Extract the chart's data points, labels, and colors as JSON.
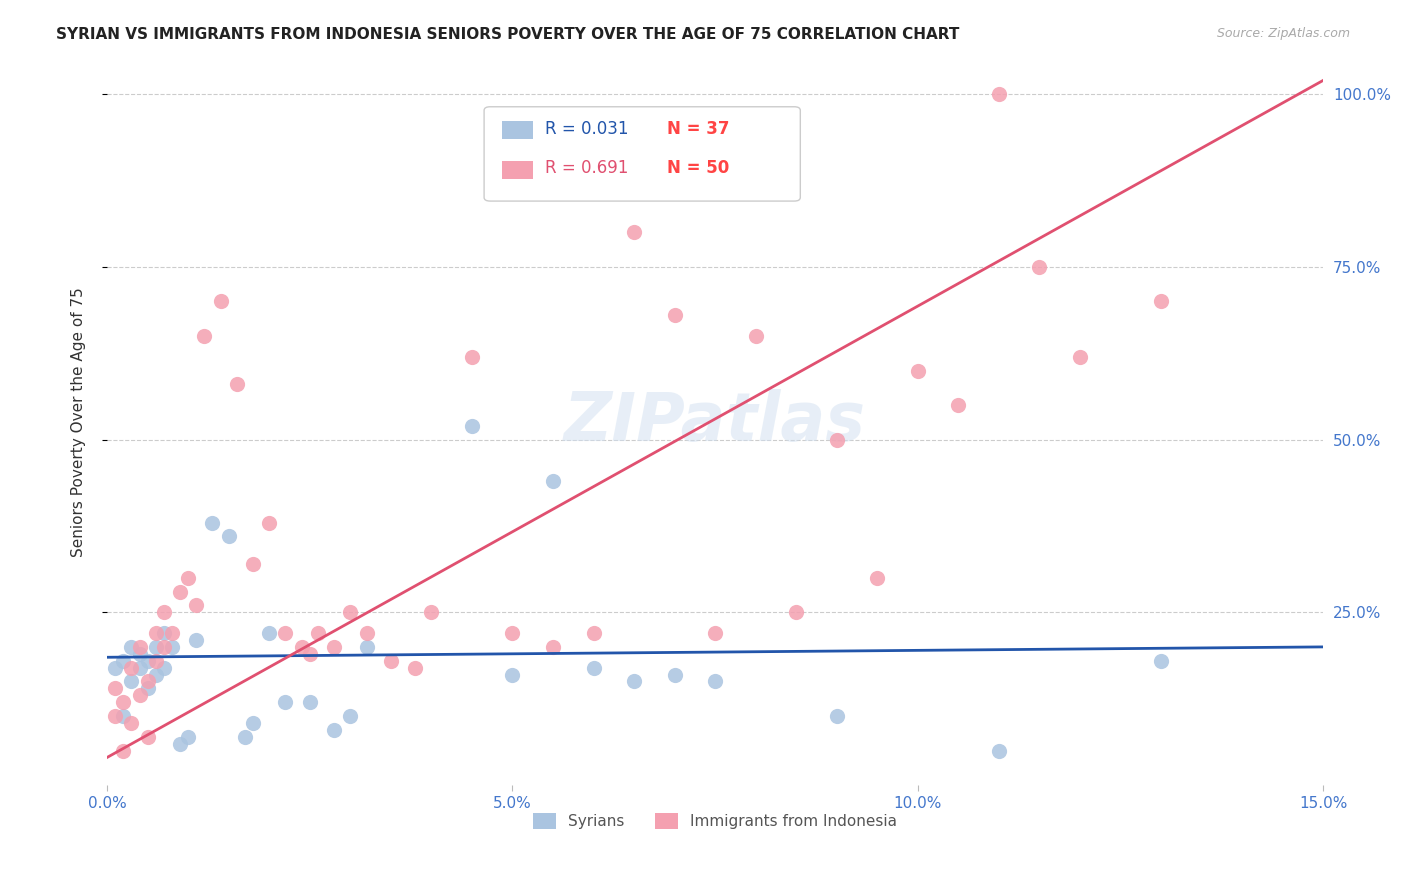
{
  "title": "SYRIAN VS IMMIGRANTS FROM INDONESIA SENIORS POVERTY OVER THE AGE OF 75 CORRELATION CHART",
  "source": "Source: ZipAtlas.com",
  "ylabel": "Seniors Poverty Over the Age of 75",
  "xlabel": "",
  "xlim": [
    0.0,
    0.15
  ],
  "ylim": [
    0.0,
    1.05
  ],
  "xticks": [
    0.0,
    0.05,
    0.1,
    0.15
  ],
  "xticklabels": [
    "0.0%",
    "5.0%",
    "10.0%",
    "15.0%"
  ],
  "ytick_positions": [
    0.25,
    0.5,
    0.75,
    1.0
  ],
  "yticklabels_right": [
    "25.0%",
    "50.0%",
    "75.0%",
    "100.0%"
  ],
  "background_color": "#ffffff",
  "grid_color": "#cccccc",
  "watermark": "ZIPatlas",
  "syrians_color": "#aac4e0",
  "indonesia_color": "#f4a0b0",
  "syrians_line_color": "#2255aa",
  "indonesia_line_color": "#e05070",
  "legend_R_syrians": "R = 0.031",
  "legend_N_syrians": "N = 37",
  "legend_R_indonesia": "R = 0.691",
  "legend_N_indonesia": "N = 50",
  "syrians_x": [
    0.001,
    0.002,
    0.002,
    0.003,
    0.003,
    0.004,
    0.004,
    0.005,
    0.005,
    0.006,
    0.006,
    0.007,
    0.007,
    0.008,
    0.009,
    0.01,
    0.011,
    0.013,
    0.015,
    0.017,
    0.018,
    0.02,
    0.022,
    0.025,
    0.028,
    0.03,
    0.032,
    0.045,
    0.05,
    0.055,
    0.06,
    0.065,
    0.07,
    0.075,
    0.09,
    0.11,
    0.13
  ],
  "syrians_y": [
    0.17,
    0.1,
    0.18,
    0.15,
    0.2,
    0.17,
    0.19,
    0.14,
    0.18,
    0.2,
    0.16,
    0.17,
    0.22,
    0.2,
    0.06,
    0.07,
    0.21,
    0.38,
    0.36,
    0.07,
    0.09,
    0.22,
    0.12,
    0.12,
    0.08,
    0.1,
    0.2,
    0.52,
    0.16,
    0.44,
    0.17,
    0.15,
    0.16,
    0.15,
    0.1,
    0.05,
    0.18
  ],
  "indonesia_x": [
    0.001,
    0.001,
    0.002,
    0.002,
    0.003,
    0.003,
    0.004,
    0.004,
    0.005,
    0.005,
    0.006,
    0.006,
    0.007,
    0.007,
    0.008,
    0.009,
    0.01,
    0.011,
    0.012,
    0.014,
    0.016,
    0.018,
    0.02,
    0.022,
    0.024,
    0.025,
    0.026,
    0.028,
    0.03,
    0.032,
    0.035,
    0.038,
    0.04,
    0.045,
    0.05,
    0.055,
    0.06,
    0.065,
    0.07,
    0.075,
    0.08,
    0.085,
    0.09,
    0.095,
    0.1,
    0.105,
    0.11,
    0.115,
    0.12,
    0.13
  ],
  "indonesia_y": [
    0.1,
    0.14,
    0.05,
    0.12,
    0.09,
    0.17,
    0.13,
    0.2,
    0.07,
    0.15,
    0.18,
    0.22,
    0.2,
    0.25,
    0.22,
    0.28,
    0.3,
    0.26,
    0.65,
    0.7,
    0.58,
    0.32,
    0.38,
    0.22,
    0.2,
    0.19,
    0.22,
    0.2,
    0.25,
    0.22,
    0.18,
    0.17,
    0.25,
    0.62,
    0.22,
    0.2,
    0.22,
    0.8,
    0.68,
    0.22,
    0.65,
    0.25,
    0.5,
    0.3,
    0.6,
    0.55,
    1.0,
    0.75,
    0.62,
    0.7
  ],
  "syrians_line": {
    "x0": 0.0,
    "x1": 0.15,
    "y0": 0.185,
    "y1": 0.2
  },
  "indonesia_line": {
    "x0": 0.0,
    "x1": 0.15,
    "y0": 0.04,
    "y1": 1.02
  }
}
